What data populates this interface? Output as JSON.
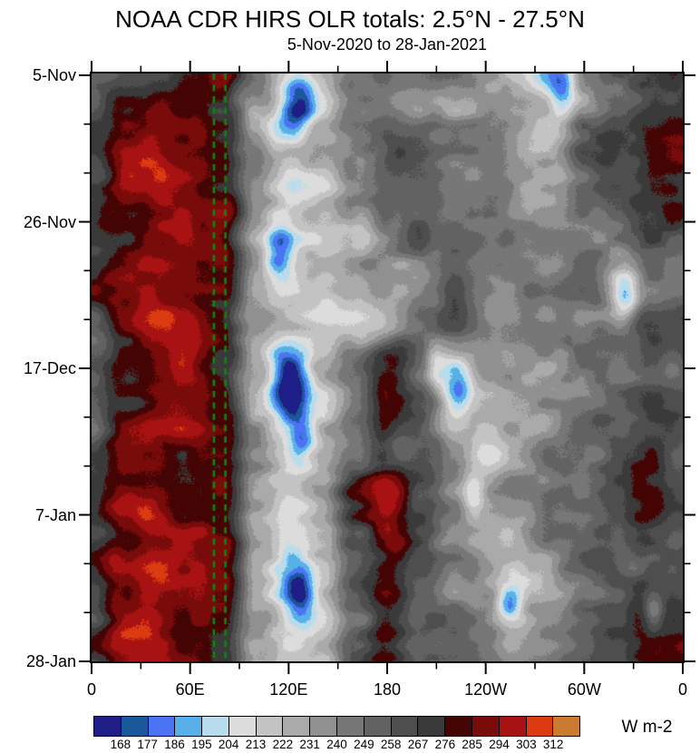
{
  "header": {
    "title": "NOAA CDR HIRS OLR totals: 2.5°N - 27.5°N",
    "subtitle": "5-Nov-2020 to 28-Jan-2021"
  },
  "colorbar": {
    "units_label": "W m-2",
    "tick_labels": [
      "168",
      "177",
      "186",
      "195",
      "204",
      "213",
      "222",
      "231",
      "240",
      "249",
      "258",
      "267",
      "276",
      "285",
      "294",
      "303",
      "312"
    ]
  },
  "chart_data": {
    "type": "heatmap",
    "title": "NOAA CDR HIRS OLR totals: 2.5°N - 27.5°N",
    "subtitle": "5-Nov-2020 to 28-Jan-2021",
    "units": "W m-2",
    "x_axis": {
      "kind": "longitude",
      "range_deg": [
        0,
        360
      ],
      "major_ticks": [
        {
          "lon": 0,
          "label": "0"
        },
        {
          "lon": 60,
          "label": "60E"
        },
        {
          "lon": 120,
          "label": "120E"
        },
        {
          "lon": 180,
          "label": "180"
        },
        {
          "lon": 240,
          "label": "120W"
        },
        {
          "lon": 300,
          "label": "60W"
        },
        {
          "lon": 360,
          "label": "0"
        }
      ],
      "minor_tick_lons": [
        30,
        90,
        150,
        210,
        270,
        330
      ]
    },
    "y_axis": {
      "kind": "time",
      "range_days": [
        0,
        84
      ],
      "major_ticks": [
        {
          "day": 0,
          "label": "5-Nov"
        },
        {
          "day": 21,
          "label": "26-Nov"
        },
        {
          "day": 42,
          "label": "17-Dec"
        },
        {
          "day": 63,
          "label": "7-Jan"
        },
        {
          "day": 84,
          "label": "28-Jan"
        }
      ],
      "minor_tick_days": [
        7,
        14,
        28,
        35,
        49,
        56,
        70,
        77
      ]
    },
    "levels": [
      168,
      177,
      186,
      195,
      204,
      213,
      222,
      231,
      240,
      249,
      258,
      267,
      276,
      285,
      294,
      303,
      312
    ],
    "colors": [
      "#1f1d86",
      "#19599b",
      "#4a74f4",
      "#57b0e8",
      "#b8dcec",
      "#dcdcdc",
      "#c3c3c3",
      "#aaaaaa",
      "#909090",
      "#777777",
      "#626262",
      "#4e4e4e",
      "#3a3a3a",
      "#450404",
      "#7a0b0b",
      "#a81212",
      "#dc3a10",
      "#c97b30"
    ],
    "grid": {
      "lon_start": 0,
      "lon_step": 20,
      "day_start": 0,
      "day_step": 6,
      "values": [
        [
          252,
          262,
          274,
          286,
          282,
          242,
          214,
          233,
          251,
          247,
          243,
          237,
          229,
          216,
          206,
          239,
          251,
          266,
          270
        ],
        [
          257,
          283,
          297,
          292,
          281,
          233,
          206,
          226,
          248,
          250,
          241,
          229,
          236,
          229,
          221,
          246,
          262,
          276,
          278
        ],
        [
          261,
          289,
          301,
          290,
          279,
          239,
          219,
          229,
          245,
          261,
          251,
          241,
          235,
          227,
          231,
          252,
          268,
          281,
          280
        ],
        [
          270,
          287,
          295,
          289,
          277,
          231,
          211,
          219,
          239,
          253,
          259,
          249,
          239,
          231,
          237,
          251,
          263,
          277,
          272
        ],
        [
          274,
          281,
          289,
          287,
          283,
          237,
          217,
          213,
          229,
          245,
          255,
          251,
          243,
          239,
          241,
          249,
          241,
          261,
          258
        ],
        [
          276,
          283,
          291,
          289,
          281,
          233,
          215,
          217,
          225,
          239,
          249,
          253,
          247,
          241,
          239,
          245,
          229,
          255,
          257
        ],
        [
          262,
          285,
          293,
          291,
          279,
          231,
          221,
          219,
          223,
          233,
          245,
          251,
          249,
          245,
          241,
          247,
          243,
          259,
          260
        ],
        [
          263,
          287,
          293,
          289,
          275,
          229,
          201,
          221,
          251,
          286,
          261,
          226,
          241,
          239,
          237,
          249,
          253,
          263,
          262
        ],
        [
          261,
          283,
          289,
          287,
          273,
          225,
          203,
          213,
          241,
          271,
          256,
          231,
          226,
          236,
          241,
          251,
          259,
          269,
          261
        ],
        [
          259,
          281,
          287,
          285,
          275,
          231,
          211,
          215,
          236,
          259,
          263,
          246,
          219,
          233,
          245,
          253,
          261,
          271,
          259
        ],
        [
          263,
          287,
          295,
          289,
          277,
          233,
          213,
          231,
          271,
          291,
          256,
          236,
          229,
          239,
          249,
          255,
          263,
          273,
          263
        ],
        [
          265,
          289,
          297,
          291,
          279,
          235,
          211,
          229,
          269,
          289,
          259,
          239,
          233,
          231,
          245,
          251,
          259,
          271,
          265
        ],
        [
          267,
          291,
          299,
          293,
          281,
          231,
          205,
          223,
          263,
          285,
          261,
          241,
          236,
          219,
          241,
          249,
          257,
          269,
          267
        ],
        [
          269,
          293,
          301,
          295,
          283,
          229,
          207,
          216,
          256,
          281,
          263,
          245,
          239,
          229,
          239,
          247,
          259,
          273,
          278
        ],
        [
          267,
          291,
          299,
          293,
          281,
          231,
          211,
          219,
          251,
          276,
          259,
          247,
          241,
          233,
          237,
          245,
          261,
          275,
          280
        ]
      ]
    },
    "convection_spots": [
      {
        "lon": 127,
        "day": 4,
        "depth": 46,
        "rlon": 10,
        "rday": 4
      },
      {
        "lon": 287,
        "day": 2,
        "depth": 32,
        "rlon": 8,
        "rday": 3
      },
      {
        "lon": 113,
        "day": 25,
        "depth": 42,
        "rlon": 9,
        "rday": 4
      },
      {
        "lon": 325,
        "day": 32,
        "depth": 38,
        "rlon": 8,
        "rday": 3.5
      },
      {
        "lon": 121,
        "day": 44,
        "depth": 58,
        "rlon": 11,
        "rday": 4.5
      },
      {
        "lon": 209,
        "day": 41,
        "depth": 34,
        "rlon": 7,
        "rday": 3
      },
      {
        "lon": 223,
        "day": 45,
        "depth": 42,
        "rlon": 8,
        "rday": 3.5
      },
      {
        "lon": 127,
        "day": 52,
        "depth": 40,
        "rlon": 8,
        "rday": 3.5
      },
      {
        "lon": 232,
        "day": 60,
        "depth": 36,
        "rlon": 7,
        "rday": 3
      },
      {
        "lon": 127,
        "day": 74,
        "depth": 50,
        "rlon": 9,
        "rday": 4
      },
      {
        "lon": 254,
        "day": 76,
        "depth": 42,
        "rlon": 8,
        "rday": 3.5
      },
      {
        "lon": 342,
        "day": 77,
        "depth": 32,
        "rlon": 6,
        "rday": 3
      }
    ],
    "reference_lines": {
      "color": "#0a8a0a",
      "style": "dashed",
      "lons": [
        74.5,
        81.5
      ]
    },
    "texture_noise": {
      "octaves": [
        [
          13,
          50,
          30,
          1
        ],
        [
          7,
          20,
          14,
          2
        ]
      ],
      "pixel_jitter": 1.5
    }
  }
}
